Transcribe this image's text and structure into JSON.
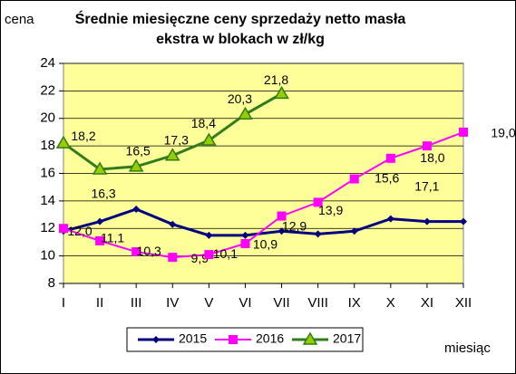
{
  "chart_data": {
    "type": "line",
    "title": "Średnie miesięczne ceny sprzedaży netto masła ekstra w blokach w zł/kg",
    "y_label": "cena",
    "x_label": "miesiąc",
    "categories": [
      "I",
      "II",
      "III",
      "IV",
      "V",
      "VI",
      "VII",
      "VIII",
      "IX",
      "X",
      "XI",
      "XII"
    ],
    "ylim": [
      8,
      24
    ],
    "yticks": [
      8,
      10,
      12,
      14,
      16,
      18,
      20,
      22,
      24
    ],
    "grid": true,
    "series": [
      {
        "name": "2015",
        "color": "#000080",
        "values": [
          11.8,
          12.5,
          13.4,
          12.3,
          11.5,
          11.5,
          11.8,
          11.6,
          11.8,
          12.7,
          12.5,
          12.5
        ]
      },
      {
        "name": "2016",
        "color": "#ff00ff",
        "values": [
          12.0,
          11.1,
          10.3,
          9.9,
          10.1,
          10.9,
          12.9,
          13.9,
          15.6,
          17.1,
          18.0,
          19.0
        ],
        "value_labels": [
          "12,0",
          "11,1",
          "10,3",
          "9,9",
          "10,1",
          "10,9",
          "12,9",
          "13,9",
          "15,6",
          "17,1",
          "18,0",
          "19,0"
        ]
      },
      {
        "name": "2017",
        "color": "#2e7d1a",
        "values": [
          18.2,
          16.3,
          16.5,
          17.3,
          18.4,
          20.3,
          21.8,
          null,
          null,
          null,
          null,
          null
        ],
        "value_labels": [
          "18,2",
          "16,3",
          "16,5",
          "17,3",
          "18,4",
          "20,3",
          "21,8",
          null,
          null,
          null,
          null,
          null
        ]
      }
    ]
  }
}
